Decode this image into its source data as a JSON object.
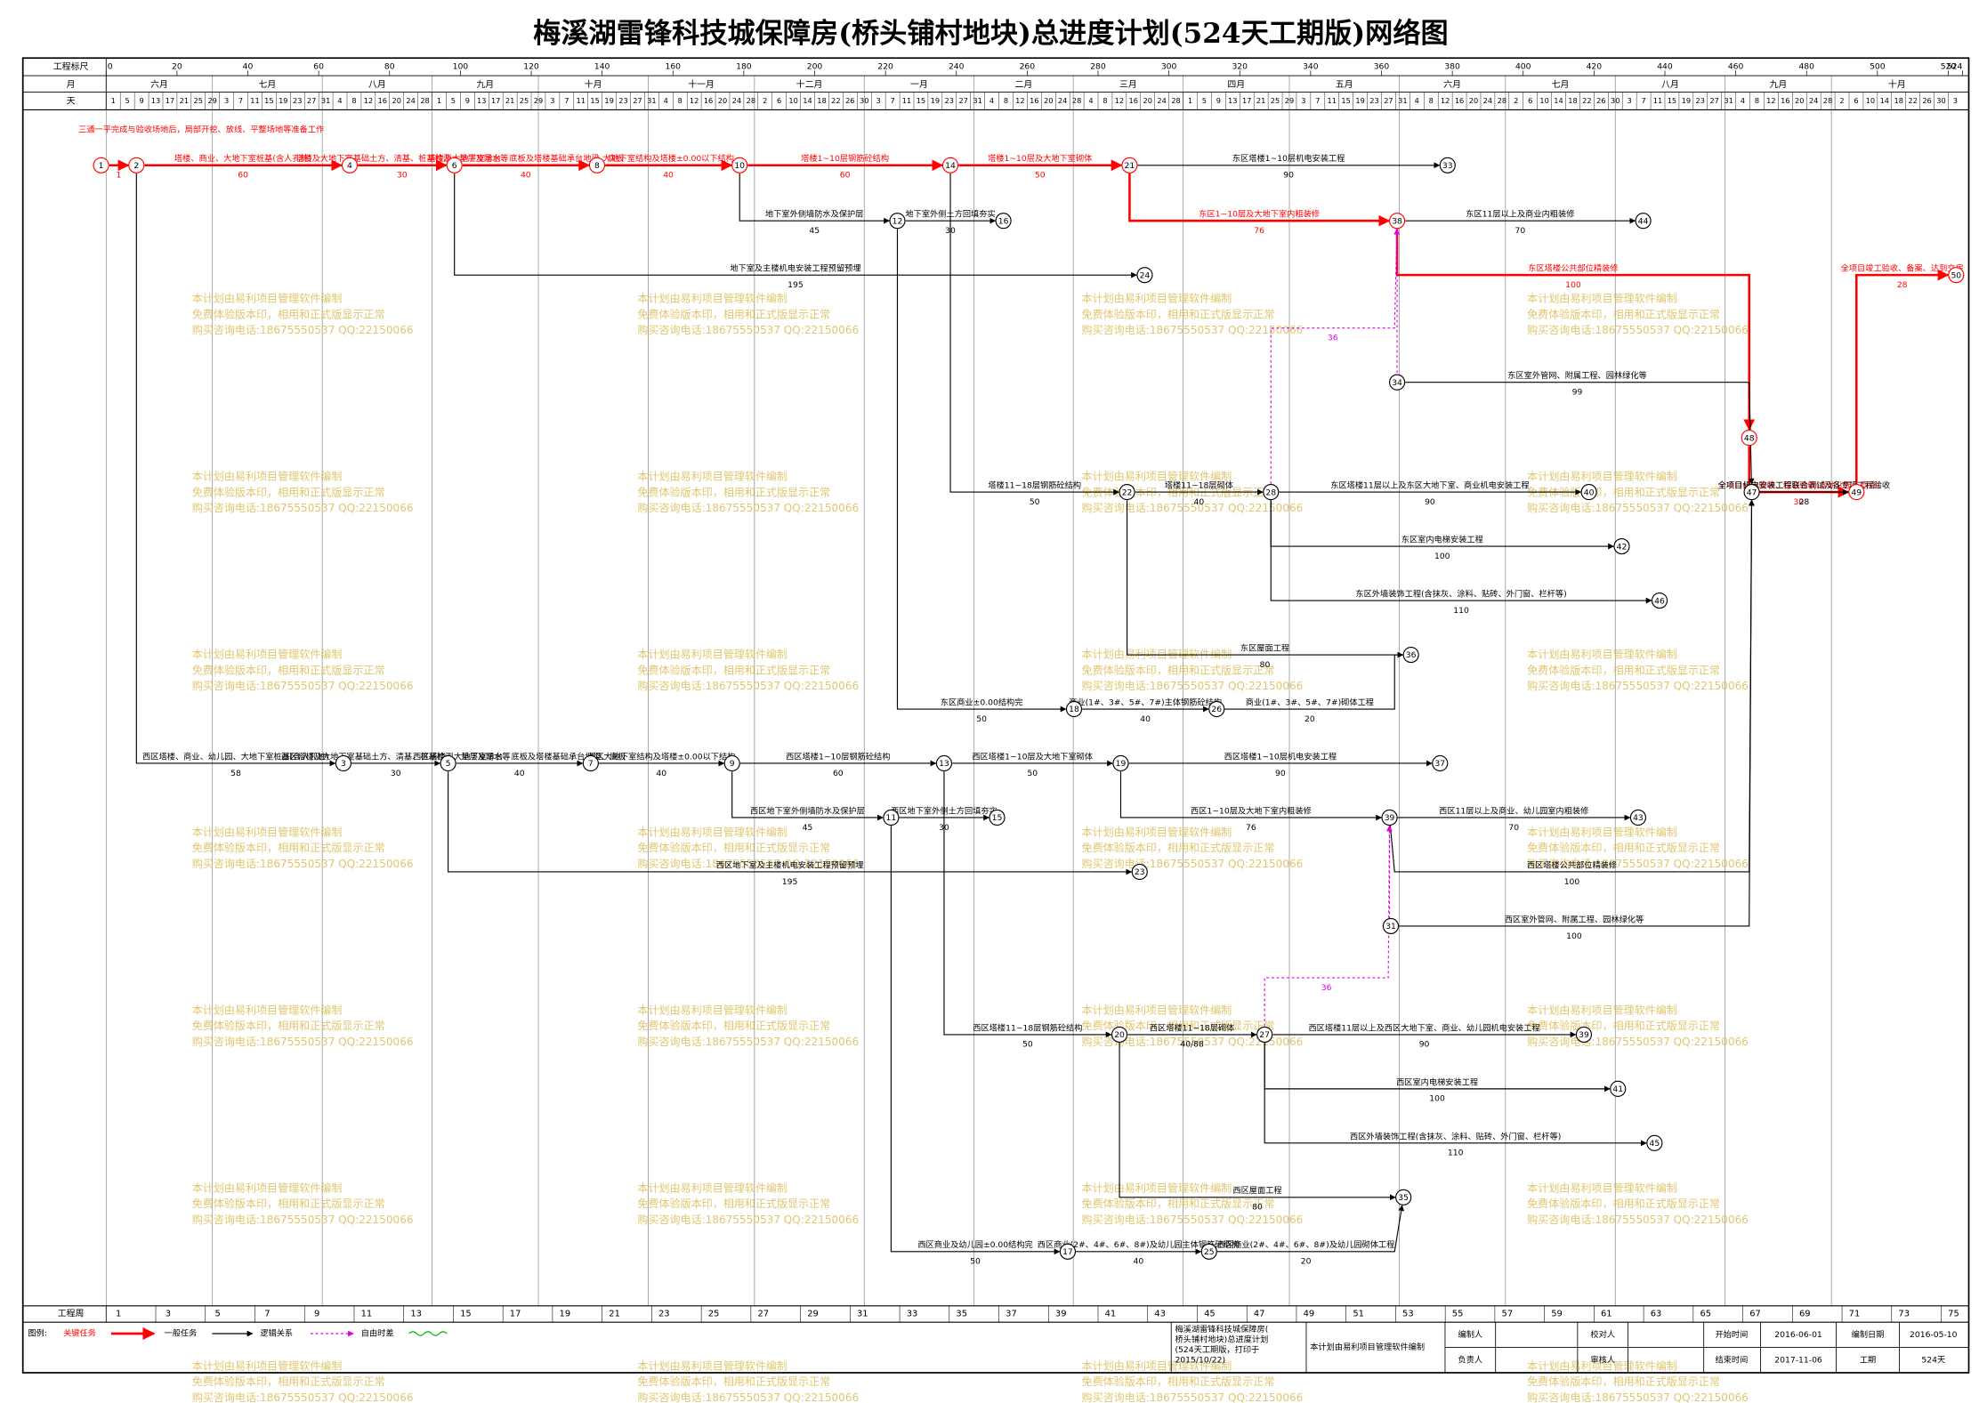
{
  "header": {
    "title": "梅溪湖雷锋科技城保障房(桥头铺村地块)总进度计划(524天工期版)网络图",
    "scale_label": "工程标尺",
    "month_label": "月",
    "day_label": "天",
    "week_label": "工程周"
  },
  "scale": [
    0,
    20,
    40,
    60,
    80,
    100,
    120,
    140,
    160,
    180,
    200,
    220,
    240,
    260,
    280,
    300,
    320,
    340,
    360,
    380,
    400,
    420,
    440,
    460,
    480,
    500,
    520,
    524
  ],
  "months": [
    "六月",
    "七月",
    "八月",
    "九月",
    "十月",
    "十一月",
    "十二月",
    "一月",
    "二月",
    "三月",
    "四月",
    "五月",
    "六月",
    "七月",
    "八月",
    "九月",
    "十月"
  ],
  "days": [
    1,
    5,
    9,
    13,
    17,
    21,
    25,
    29,
    3,
    7,
    11,
    15,
    19,
    23,
    27,
    31,
    4,
    8,
    12,
    16,
    20,
    24,
    28,
    1,
    5,
    9,
    13,
    17,
    21,
    25,
    29,
    3,
    7,
    11,
    15,
    19,
    23,
    27,
    31,
    4,
    8,
    12,
    16,
    20,
    24,
    28,
    2,
    6,
    10,
    14,
    18,
    22,
    26,
    30,
    3,
    7,
    11,
    15,
    19,
    23,
    27,
    31,
    4,
    8,
    12,
    16,
    20,
    24,
    28,
    4,
    8,
    12,
    16,
    20,
    24,
    28,
    1,
    5,
    9,
    13,
    17,
    21,
    25,
    29,
    3,
    7,
    11,
    15,
    19,
    23,
    27,
    31,
    4,
    8,
    12,
    16,
    20,
    24,
    28,
    2,
    6,
    10,
    14,
    18,
    22,
    26,
    30,
    3,
    7,
    11,
    15,
    19,
    23,
    27,
    31,
    4,
    8,
    12,
    16,
    20,
    24,
    28,
    2,
    6,
    10,
    14,
    18,
    22,
    26,
    30,
    3
  ],
  "weeks": [
    1,
    3,
    5,
    7,
    9,
    11,
    13,
    15,
    17,
    19,
    21,
    23,
    25,
    27,
    29,
    31,
    33,
    35,
    37,
    39,
    41,
    43,
    45,
    47,
    49,
    51,
    53,
    55,
    57,
    59,
    61,
    63,
    65,
    67,
    69,
    71,
    73,
    75
  ],
  "nodes": [
    "1",
    "2",
    "4",
    "6",
    "8",
    "10",
    "14",
    "21",
    "33",
    "12",
    "16",
    "38",
    "44",
    "24",
    "50",
    "34",
    "48",
    "22",
    "28",
    "40",
    "47",
    "49",
    "42",
    "46",
    "36",
    "18",
    "26",
    "3",
    "5",
    "7",
    "9",
    "13",
    "19",
    "37",
    "11",
    "15",
    "39",
    "43",
    "23",
    "31",
    "20",
    "27",
    "39",
    "41",
    "45",
    "35",
    "17",
    "25"
  ],
  "tasks": [
    {
      "label": "三通一平完成与验收场地后，局部开挖、放线、平整场地等准备工作",
      "duration": "1"
    },
    {
      "label": "塔楼、商业、大地下室桩基(含人孔桩)",
      "duration": "60"
    },
    {
      "label": "塔楼及大地下室基础土方、清基、桩基检测、垫层及防水等",
      "duration": "30"
    },
    {
      "label": "塔楼及大地下室承台、底板及塔楼基础承台地梁、底板",
      "duration": "40"
    },
    {
      "label": "大地下室结构及塔楼±0.00以下结构",
      "duration": "40"
    },
    {
      "label": "塔楼1~10层钢筋砼结构",
      "duration": "60"
    },
    {
      "label": "塔楼1~10层及大地下室砌体",
      "duration": "50"
    },
    {
      "label": "东区塔楼1~10层机电安装工程",
      "duration": "90"
    },
    {
      "label": "东区1~10层及大地下室内粗装修",
      "duration": "76"
    },
    {
      "label": "东区11层以上及商业内粗装修",
      "duration": "70"
    },
    {
      "label": "东区塔楼公共部位精装修",
      "duration": "100"
    },
    {
      "label": "全项目分户验收、综合验收(含幼儿园、商业)",
      "duration": "30"
    },
    {
      "label": "全项目竣工验收、备案、达到交房",
      "duration": "28"
    },
    {
      "label": "地下室外侧墙防水及保护层",
      "duration": "45"
    },
    {
      "label": "地下室外侧土方回填夯实",
      "duration": "30"
    },
    {
      "label": "地下室及主楼机电安装工程预留预埋",
      "duration": "195"
    },
    {
      "label": "东区室外管网、附属工程、园林绿化等",
      "duration": "99"
    },
    {
      "label": "塔楼11~18层钢筋砼结构",
      "duration": "50"
    },
    {
      "label": "塔楼11~18层砌体",
      "duration": "40"
    },
    {
      "label": "东区塔楼11层以上及东区大地下室、商业机电安装工程",
      "duration": "90"
    },
    {
      "label": "全项目机电安装工程联合调试及各专项工程验收",
      "duration": "28"
    },
    {
      "label": "东区室内电梯安装工程",
      "duration": "100"
    },
    {
      "label": "东区外墙装饰工程(含抹灰、涂料、贴砖、外门窗、栏杆等)",
      "duration": "110"
    },
    {
      "label": "东区屋面工程",
      "duration": "80"
    },
    {
      "label": "东区商业±0.00结构完",
      "duration": "50"
    },
    {
      "label": "商业(1#、3#、5#、7#)主体钢筋砼结构",
      "duration": "40"
    },
    {
      "label": "商业(1#、3#、5#、7#)砌体工程",
      "duration": "20"
    },
    {
      "label": "西区塔楼、商业、幼儿园、大地下室桩基(含人孔桩)",
      "duration": "58"
    },
    {
      "label": "西区塔楼及大地下室基础土方、清基、桩基检测、垫层及防水等",
      "duration": "30"
    },
    {
      "label": "西区塔楼、大地下室承台、底板及塔楼基础承台地梁、底板",
      "duration": "40"
    },
    {
      "label": "西区大地下室结构及塔楼±0.00以下结构",
      "duration": "40"
    },
    {
      "label": "西区塔楼1~10层钢筋砼结构",
      "duration": "60"
    },
    {
      "label": "西区塔楼1~10层及大地下室砌体",
      "duration": "50"
    },
    {
      "label": "西区塔楼1~10层机电安装工程",
      "duration": "90"
    },
    {
      "label": "西区1~10层及大地下室内粗装修",
      "duration": "76"
    },
    {
      "label": "西区11层以上及商业、幼儿园室内粗装修",
      "duration": "70"
    },
    {
      "label": "西区塔楼公共部位精装修",
      "duration": "100"
    },
    {
      "label": "西区室外管网、附属工程、园林绿化等",
      "duration": "100"
    },
    {
      "label": "西区地下室外侧墙防水及保护层",
      "duration": "45"
    },
    {
      "label": "西区地下室外侧土方回填夯实",
      "duration": "30"
    },
    {
      "label": "西区地下室及主楼机电安装工程预留预埋",
      "duration": "195"
    },
    {
      "label": "西区塔楼11~18层钢筋砼结构",
      "duration": "50"
    },
    {
      "label": "西区塔楼11~18层砌体",
      "duration": "40/88"
    },
    {
      "label": "西区塔楼11层以上及西区大地下室、商业、幼儿园机电安装工程",
      "duration": "90"
    },
    {
      "label": "西区室内电梯安装工程",
      "duration": "100"
    },
    {
      "label": "西区外墙装饰工程(含抹灰、涂料、贴砖、外门窗、栏杆等)",
      "duration": "110"
    },
    {
      "label": "西区屋面工程",
      "duration": "80"
    },
    {
      "label": "西区商业及幼儿园±0.00结构完",
      "duration": "50"
    },
    {
      "label": "西区商业(2#、4#、6#、8#)及幼儿园主体钢筋砼结构",
      "duration": "40"
    },
    {
      "label": "西区商业(2#、4#、6#、8#)及幼儿园砌体工程",
      "duration": "20"
    }
  ],
  "free_float": [
    "36",
    "36"
  ],
  "legend": {
    "title": "图例:",
    "critical": "关键任务",
    "normal": "一般任务",
    "logic": "逻辑关系",
    "float": "自由时差"
  },
  "footer": {
    "plan_name": [
      "梅溪湖雷锋科技城保障房(",
      "桥头铺村地块)总进度计划",
      "(524天工期版，打印于",
      "2015/10/22)"
    ],
    "software": "本计划由易利项目管理软件编制",
    "author_label": "编制人",
    "checker_label": "校对人",
    "start_label": "开始时间",
    "start": "2016-06-01",
    "made_label": "编制日期",
    "made": "2016-05-10",
    "lead_label": "负责人",
    "reviewer_label": "审核人",
    "end_label": "结束时间",
    "end": "2017-11-06",
    "duration_label": "工期",
    "duration": "524天"
  },
  "watermark": {
    "lines": [
      "本计划由易利项目管理软件编制",
      "免费体验版本印，相用和正式版显示正常",
      "购买咨询电话:18675550537 QQ:22150066"
    ]
  }
}
